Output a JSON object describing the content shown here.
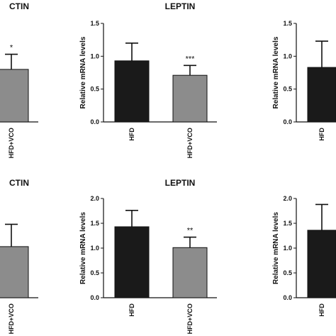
{
  "chart_data": [
    {
      "type": "bar",
      "title": "CTIN",
      "ylabel": "",
      "categories": [
        "HFD+VCO"
      ],
      "yticks": [],
      "ylim": [
        0,
        1.5
      ],
      "series": [
        {
          "values": [
            0.8
          ],
          "errors": [
            0.23
          ]
        }
      ],
      "colors": [
        "#8c8c8c"
      ],
      "annotations": [
        "*"
      ]
    },
    {
      "type": "bar",
      "title": "LEPTIN",
      "ylabel": "Relative mRNA levels",
      "categories": [
        "HFD",
        "HFD+VCO"
      ],
      "yticks": [
        "0.0",
        "0.5",
        "1.0",
        "1.5"
      ],
      "ylim": [
        0,
        1.5
      ],
      "series": [
        {
          "values": [
            0.93,
            0.71
          ],
          "errors": [
            0.27,
            0.15
          ]
        }
      ],
      "colors": [
        "#1a1a1a",
        "#8c8c8c"
      ],
      "annotations": [
        "",
        "***"
      ]
    },
    {
      "type": "bar",
      "title": "",
      "ylabel": "Relative mRNA levels",
      "categories": [
        "HFD"
      ],
      "yticks": [
        "0.0",
        "0.5",
        "1.0",
        "1.5"
      ],
      "ylim": [
        0,
        1.5
      ],
      "series": [
        {
          "values": [
            0.83
          ],
          "errors": [
            0.4
          ]
        }
      ],
      "colors": [
        "#1a1a1a"
      ],
      "annotations": [
        ""
      ]
    },
    {
      "type": "bar",
      "title": "CTIN",
      "ylabel": "",
      "categories": [
        "HFD+VCO"
      ],
      "yticks": [],
      "ylim": [
        0,
        2.0
      ],
      "series": [
        {
          "values": [
            1.03
          ],
          "errors": [
            0.45
          ]
        }
      ],
      "colors": [
        "#8c8c8c"
      ],
      "annotations": [
        ""
      ]
    },
    {
      "type": "bar",
      "title": "LEPTIN",
      "ylabel": "Relative mRNA levels",
      "categories": [
        "HFD",
        "HFD+VCO"
      ],
      "yticks": [
        "0.0",
        "0.5",
        "1.0",
        "1.5",
        "2.0"
      ],
      "ylim": [
        0,
        2.0
      ],
      "series": [
        {
          "values": [
            1.43,
            1.01
          ],
          "errors": [
            0.33,
            0.21
          ]
        }
      ],
      "colors": [
        "#1a1a1a",
        "#8c8c8c"
      ],
      "annotations": [
        "",
        "**"
      ]
    },
    {
      "type": "bar",
      "title": "",
      "ylabel": "Relative mRNA levels",
      "categories": [
        "HFD"
      ],
      "yticks": [
        "0.0",
        "0.5",
        "1.0",
        "1.5",
        "2.0"
      ],
      "ylim": [
        0,
        2.0
      ],
      "series": [
        {
          "values": [
            1.36
          ],
          "errors": [
            0.52
          ]
        }
      ],
      "colors": [
        "#1a1a1a"
      ],
      "annotations": [
        ""
      ]
    }
  ]
}
